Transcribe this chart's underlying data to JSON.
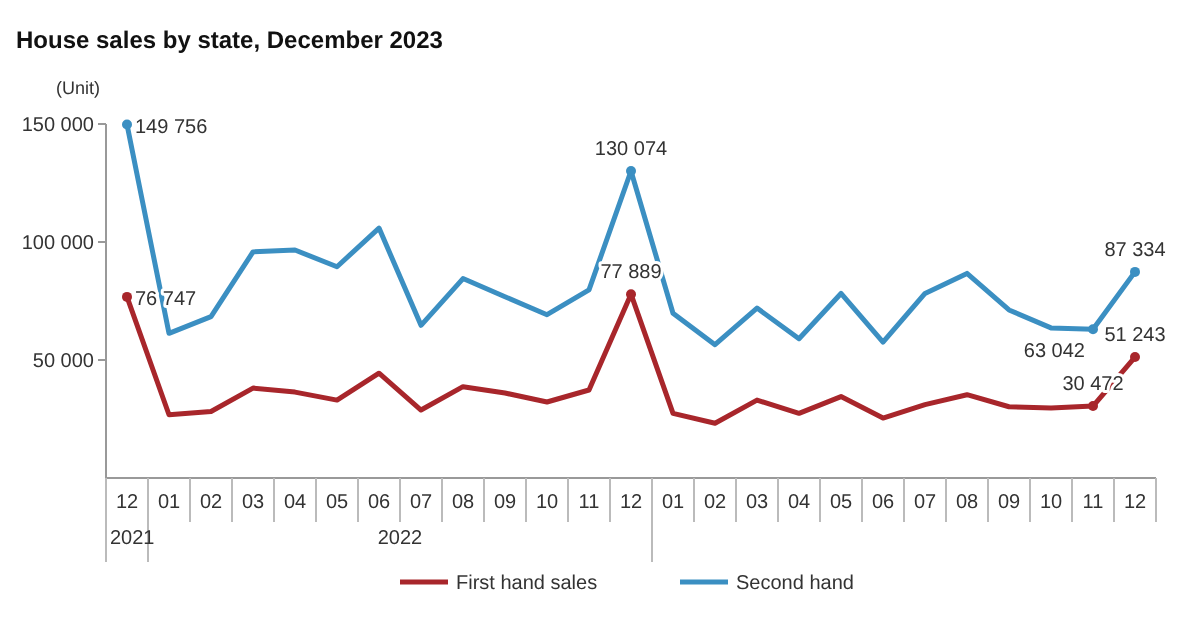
{
  "chart_data": {
    "type": "line",
    "title": "House sales by state, December 2023",
    "ylabel": "(Unit)",
    "categories": [
      "12",
      "01",
      "02",
      "03",
      "04",
      "05",
      "06",
      "07",
      "08",
      "09",
      "10",
      "11",
      "12",
      "01",
      "02",
      "03",
      "04",
      "05",
      "06",
      "07",
      "08",
      "09",
      "10",
      "11",
      "12"
    ],
    "series": [
      {
        "name": "First hand sales",
        "color": "#a8262b",
        "values": [
          76747,
          26800,
          28200,
          38100,
          36400,
          33000,
          44400,
          28800,
          38700,
          36000,
          32200,
          37300,
          77889,
          27400,
          23200,
          33000,
          27400,
          34500,
          25400,
          31100,
          35300,
          30200,
          29700,
          30472,
          51243
        ],
        "value_labels": [
          "76 747",
          null,
          null,
          null,
          null,
          null,
          null,
          null,
          null,
          null,
          null,
          null,
          "77 889",
          null,
          null,
          null,
          null,
          null,
          null,
          null,
          null,
          null,
          null,
          "30 472",
          "51 243"
        ]
      },
      {
        "name": "Second hand",
        "color": "#3b8fc2",
        "values": [
          149756,
          61300,
          68400,
          95800,
          96600,
          89500,
          105900,
          64700,
          84500,
          76800,
          69200,
          79700,
          130074,
          69800,
          56500,
          72000,
          59000,
          78200,
          57600,
          78200,
          86700,
          71200,
          63600,
          63042,
          87334
        ],
        "value_labels": [
          "149 756",
          null,
          null,
          null,
          null,
          null,
          null,
          null,
          null,
          null,
          null,
          null,
          "130 074",
          null,
          null,
          null,
          null,
          null,
          null,
          null,
          null,
          null,
          null,
          "63 042",
          "87 334"
        ]
      }
    ],
    "ylim": [
      0,
      150000
    ],
    "yticks": [
      {
        "value": 50000,
        "label": "50 000"
      },
      {
        "value": 100000,
        "label": "100 000"
      },
      {
        "value": 150000,
        "label": "150 000"
      }
    ],
    "grid": false,
    "legend": "bottom",
    "line_style": "solid",
    "annotations": [
      "2021",
      "2022"
    ]
  }
}
